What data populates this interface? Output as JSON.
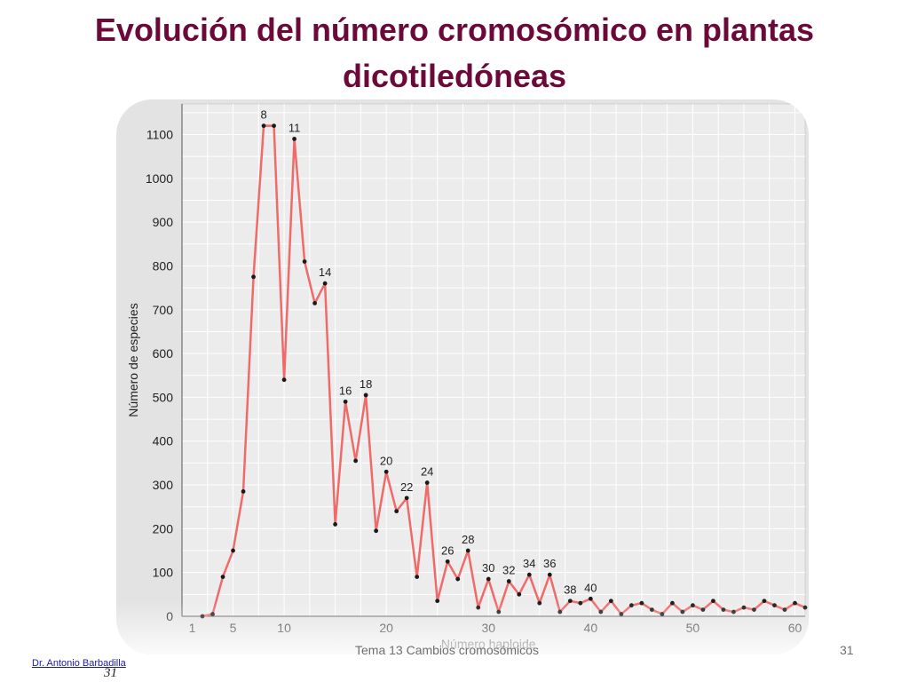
{
  "slide": {
    "title": "Evolución del número cromosómico en plantas dicotiledóneas",
    "footer": "Tema 13 Cambios cromosómicos",
    "page_number": "31",
    "author": "Dr. Antonio Barbadilla",
    "image_page_number": "31"
  },
  "colors": {
    "title": "#6b0a38",
    "line": "#f06a6a",
    "points": "#1a1a1a",
    "plot_background": "#ececec",
    "frame": "#e3e3e3"
  },
  "chart_data": {
    "type": "line",
    "xlabel": "Número haploide",
    "ylabel": "Número de especies",
    "xlim": [
      0,
      61
    ],
    "ylim": [
      0,
      1170
    ],
    "xticks": [
      1,
      5,
      10,
      20,
      30,
      40,
      50,
      60
    ],
    "yticks": [
      0,
      100,
      200,
      300,
      400,
      500,
      600,
      700,
      800,
      900,
      1000,
      1100
    ],
    "grid": true,
    "series": [
      {
        "x": [
          2,
          3,
          4,
          5,
          6,
          7,
          8,
          9,
          10,
          11,
          12,
          13,
          14,
          15,
          16,
          17,
          18,
          19,
          20,
          21,
          22,
          23,
          24,
          25,
          26,
          27,
          28,
          29,
          30,
          31,
          32,
          33,
          34,
          35,
          36,
          37,
          38,
          39,
          40,
          41,
          42,
          43,
          44,
          45,
          46,
          47,
          48,
          49,
          50,
          51,
          52,
          53,
          54,
          55,
          56,
          57,
          58,
          59,
          60,
          61
        ],
        "values": [
          0,
          5,
          90,
          150,
          285,
          775,
          1120,
          1120,
          540,
          1090,
          810,
          715,
          760,
          210,
          490,
          355,
          505,
          195,
          330,
          240,
          270,
          90,
          305,
          35,
          125,
          85,
          150,
          20,
          85,
          10,
          80,
          50,
          95,
          30,
          95,
          10,
          35,
          30,
          40,
          10,
          35,
          5,
          25,
          30,
          15,
          5,
          30,
          10,
          25,
          15,
          35,
          15,
          10,
          20,
          15,
          35,
          25,
          15,
          30,
          20
        ]
      }
    ],
    "point_labels": [
      {
        "x": 8,
        "y": 1120,
        "text": "8"
      },
      {
        "x": 11,
        "y": 1090,
        "text": "11"
      },
      {
        "x": 14,
        "y": 760,
        "text": "14"
      },
      {
        "x": 16,
        "y": 490,
        "text": "16"
      },
      {
        "x": 18,
        "y": 505,
        "text": "18"
      },
      {
        "x": 20,
        "y": 330,
        "text": "20"
      },
      {
        "x": 22,
        "y": 270,
        "text": "22"
      },
      {
        "x": 24,
        "y": 305,
        "text": "24"
      },
      {
        "x": 26,
        "y": 125,
        "text": "26"
      },
      {
        "x": 28,
        "y": 150,
        "text": "28"
      },
      {
        "x": 30,
        "y": 85,
        "text": "30"
      },
      {
        "x": 32,
        "y": 80,
        "text": "32"
      },
      {
        "x": 34,
        "y": 95,
        "text": "34"
      },
      {
        "x": 36,
        "y": 95,
        "text": "36"
      },
      {
        "x": 38,
        "y": 35,
        "text": "38"
      },
      {
        "x": 40,
        "y": 40,
        "text": "40"
      }
    ]
  }
}
